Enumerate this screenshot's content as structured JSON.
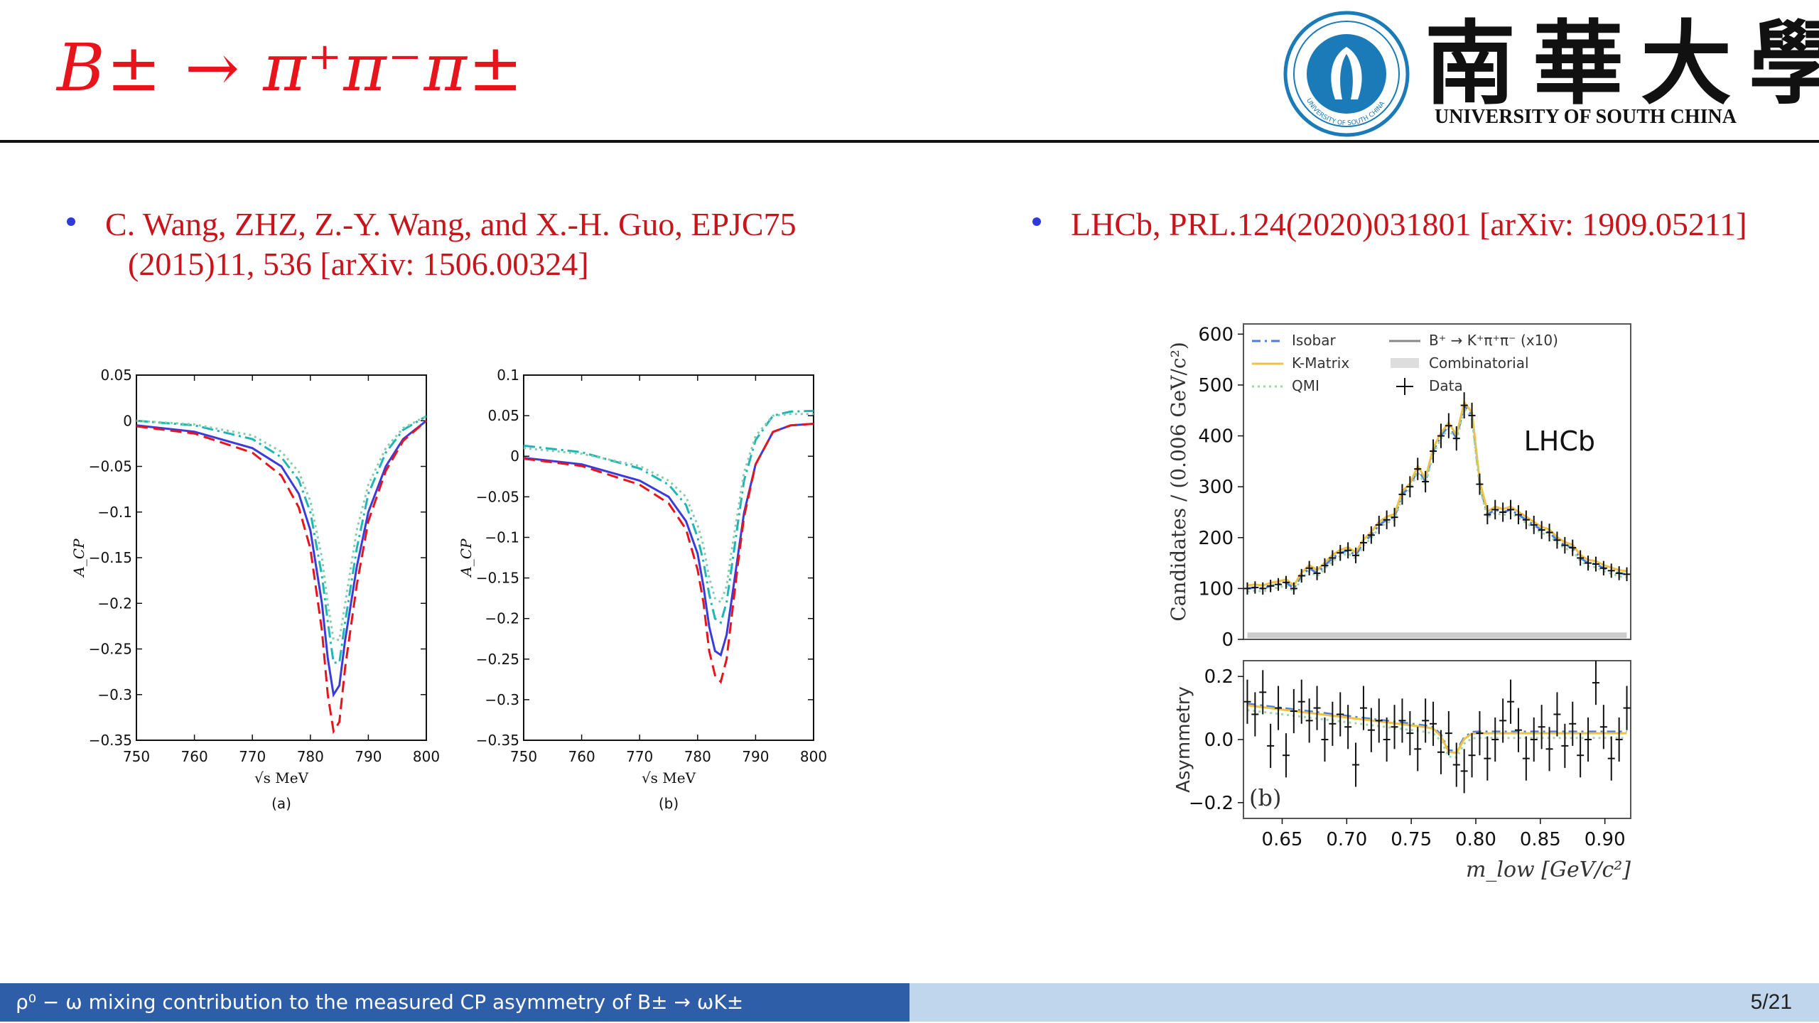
{
  "slide": {
    "title": "B± → π⁺π⁻π±",
    "logo": {
      "chinese_name": "南華大學",
      "english_name": "UNIVERSITY OF SOUTH CHINA",
      "seal_text": "UNIVERSITY OF SOUTH CHINA",
      "colors": {
        "seal": "#1a7bb8"
      }
    },
    "bullets": [
      {
        "line1": "C. Wang, ZHZ, Z.-Y. Wang, and X.-H. Guo, EPJC75",
        "line2": "(2015)11, 536 [arXiv: 1506.00324]"
      },
      {
        "line1": "LHCb, PRL.124(2020)031801 [arXiv: 1909.05211]"
      }
    ],
    "footer": {
      "text": "ρ⁰ − ω mixing contribution to the measured CP asymmetry of B± → ωK±",
      "page": "5/21"
    },
    "colors": {
      "title": "#e8141b",
      "bullet_text": "#c8141b",
      "bullet_dot": "#2e3bd6",
      "footer_left": "#2f5ea8",
      "footer_right": "#c0d6ec"
    }
  },
  "chart_data": [
    {
      "type": "line",
      "panel_label": "(a)",
      "xlabel": "√s MeV",
      "ylabel": "A_CP",
      "xlim": [
        750,
        800
      ],
      "ylim": [
        -0.35,
        0.05
      ],
      "xticks": [
        750,
        760,
        770,
        780,
        790,
        800
      ],
      "yticks": [
        0.05,
        0,
        -0.05,
        -0.1,
        -0.15,
        -0.2,
        -0.25,
        -0.3,
        -0.35
      ],
      "ytick_labels": [
        "0.05",
        "0",
        "−0.05",
        "−0.1",
        "−0.15",
        "−0.2",
        "−0.25",
        "−0.3",
        "−0.35"
      ],
      "grid": false,
      "series": [
        {
          "style": "solid",
          "color": "#3b3bdc",
          "x": [
            750,
            760,
            770,
            775,
            778,
            780,
            782,
            783,
            784,
            785,
            786,
            788,
            790,
            793,
            796,
            800
          ],
          "y": [
            -0.005,
            -0.012,
            -0.03,
            -0.05,
            -0.08,
            -0.12,
            -0.2,
            -0.26,
            -0.3,
            -0.29,
            -0.24,
            -0.16,
            -0.1,
            -0.05,
            -0.02,
            0.0
          ]
        },
        {
          "style": "dashed",
          "color": "#e8141b",
          "x": [
            750,
            760,
            770,
            775,
            778,
            780,
            782,
            783,
            784,
            785,
            786,
            788,
            790,
            793,
            796,
            800
          ],
          "y": [
            -0.006,
            -0.014,
            -0.035,
            -0.06,
            -0.095,
            -0.14,
            -0.23,
            -0.3,
            -0.34,
            -0.33,
            -0.27,
            -0.18,
            -0.11,
            -0.055,
            -0.022,
            0.0
          ]
        },
        {
          "style": "dashdot",
          "color": "#1fb5b5",
          "x": [
            750,
            760,
            770,
            775,
            778,
            780,
            782,
            783,
            784,
            785,
            786,
            788,
            790,
            793,
            796,
            800
          ],
          "y": [
            0.0,
            -0.005,
            -0.02,
            -0.04,
            -0.065,
            -0.1,
            -0.17,
            -0.22,
            -0.265,
            -0.265,
            -0.22,
            -0.14,
            -0.08,
            -0.035,
            -0.01,
            0.005
          ]
        },
        {
          "style": "dotted",
          "color": "#88ccaa",
          "x": [
            750,
            760,
            770,
            775,
            778,
            780,
            782,
            783,
            784,
            785,
            786,
            788,
            790,
            793,
            796,
            800
          ],
          "y": [
            0.0,
            -0.004,
            -0.016,
            -0.034,
            -0.056,
            -0.088,
            -0.15,
            -0.2,
            -0.24,
            -0.24,
            -0.2,
            -0.12,
            -0.07,
            -0.03,
            -0.008,
            0.005
          ]
        }
      ]
    },
    {
      "type": "line",
      "panel_label": "(b)",
      "xlabel": "√s MeV",
      "ylabel": "A_CP",
      "xlim": [
        750,
        800
      ],
      "ylim": [
        -0.35,
        0.1
      ],
      "xticks": [
        750,
        760,
        770,
        780,
        790,
        800
      ],
      "yticks": [
        0.1,
        0.05,
        0,
        -0.05,
        -0.1,
        -0.15,
        -0.2,
        -0.25,
        -0.3,
        -0.35
      ],
      "ytick_labels": [
        "0.1",
        "0.05",
        "0",
        "−0.05",
        "−0.1",
        "−0.15",
        "−0.2",
        "−0.25",
        "−0.3",
        "−0.35"
      ],
      "grid": false,
      "series": [
        {
          "style": "solid",
          "color": "#3b3bdc",
          "x": [
            750,
            760,
            770,
            775,
            778,
            780,
            781,
            782,
            783,
            784,
            785,
            786,
            787,
            788,
            790,
            793,
            796,
            800
          ],
          "y": [
            -0.002,
            -0.01,
            -0.03,
            -0.05,
            -0.08,
            -0.12,
            -0.16,
            -0.21,
            -0.24,
            -0.245,
            -0.22,
            -0.17,
            -0.12,
            -0.07,
            -0.01,
            0.03,
            0.038,
            0.04
          ]
        },
        {
          "style": "dashed",
          "color": "#e8141b",
          "x": [
            750,
            760,
            770,
            775,
            778,
            780,
            781,
            782,
            783,
            784,
            785,
            786,
            787,
            788,
            790,
            793,
            796,
            800
          ],
          "y": [
            -0.003,
            -0.012,
            -0.035,
            -0.058,
            -0.09,
            -0.14,
            -0.18,
            -0.24,
            -0.27,
            -0.278,
            -0.25,
            -0.19,
            -0.13,
            -0.075,
            -0.01,
            0.03,
            0.038,
            0.04
          ]
        },
        {
          "style": "dashdot",
          "color": "#1fb5b5",
          "x": [
            750,
            760,
            770,
            775,
            778,
            780,
            781,
            782,
            783,
            784,
            785,
            786,
            787,
            788,
            790,
            793,
            796,
            800
          ],
          "y": [
            0.013,
            0.005,
            -0.015,
            -0.035,
            -0.06,
            -0.1,
            -0.13,
            -0.17,
            -0.2,
            -0.205,
            -0.18,
            -0.13,
            -0.08,
            -0.03,
            0.02,
            0.05,
            0.055,
            0.056
          ]
        },
        {
          "style": "dotted",
          "color": "#88ccaa",
          "x": [
            750,
            760,
            770,
            775,
            778,
            780,
            781,
            782,
            783,
            784,
            785,
            786,
            787,
            788,
            790,
            793,
            796,
            800
          ],
          "y": [
            0.01,
            0.003,
            -0.012,
            -0.03,
            -0.05,
            -0.085,
            -0.11,
            -0.15,
            -0.175,
            -0.18,
            -0.16,
            -0.11,
            -0.065,
            -0.02,
            0.025,
            0.05,
            0.052,
            0.052
          ]
        }
      ]
    },
    {
      "type": "scatter",
      "panel": "top",
      "annotation": "LHCb",
      "ylabel": "Candidates / (0.006 GeV/c²)",
      "xlim": [
        0.62,
        0.92
      ],
      "ylim": [
        0,
        620
      ],
      "yticks": [
        0,
        100,
        200,
        300,
        400,
        500,
        600
      ],
      "grid": false,
      "legend": {
        "placement": "top-left",
        "entries": [
          "Isobar",
          "K-Matrix",
          "QMI",
          "B⁺ → K⁺π⁺π⁻ (x10)",
          "Combinatorial",
          "Data"
        ]
      },
      "data": {
        "x": [
          0.623,
          0.629,
          0.635,
          0.641,
          0.647,
          0.653,
          0.659,
          0.665,
          0.671,
          0.677,
          0.683,
          0.689,
          0.695,
          0.701,
          0.707,
          0.713,
          0.719,
          0.725,
          0.731,
          0.737,
          0.743,
          0.749,
          0.755,
          0.761,
          0.767,
          0.773,
          0.779,
          0.785,
          0.791,
          0.797,
          0.803,
          0.809,
          0.815,
          0.821,
          0.827,
          0.833,
          0.839,
          0.845,
          0.851,
          0.857,
          0.863,
          0.869,
          0.875,
          0.881,
          0.887,
          0.893,
          0.899,
          0.905,
          0.911,
          0.917
        ],
        "y": [
          100,
          102,
          100,
          105,
          108,
          112,
          100,
          125,
          140,
          130,
          145,
          160,
          170,
          175,
          165,
          190,
          205,
          225,
          235,
          240,
          285,
          300,
          335,
          310,
          370,
          400,
          420,
          395,
          460,
          440,
          305,
          245,
          255,
          250,
          255,
          245,
          235,
          225,
          215,
          210,
          195,
          185,
          180,
          160,
          150,
          148,
          140,
          135,
          130,
          128
        ]
      },
      "models": [
        "Isobar",
        "K-Matrix",
        "QMI"
      ]
    },
    {
      "type": "scatter",
      "panel": "bottom",
      "panel_label": "(b)",
      "ylabel": "Asymmetry",
      "xlabel": "m_low [GeV/c²]",
      "xlim": [
        0.62,
        0.92
      ],
      "ylim": [
        -0.25,
        0.25
      ],
      "xticks": [
        0.65,
        0.7,
        0.75,
        0.8,
        0.85,
        0.9
      ],
      "xtick_labels": [
        "0.65",
        "0.70",
        "0.75",
        "0.80",
        "0.85",
        "0.90"
      ],
      "yticks": [
        0.2,
        0.0,
        -0.2
      ],
      "ytick_labels": [
        "0.2",
        "0.0",
        "−0.2"
      ],
      "grid": false,
      "data": {
        "x": [
          0.623,
          0.629,
          0.635,
          0.641,
          0.647,
          0.653,
          0.659,
          0.665,
          0.671,
          0.677,
          0.683,
          0.689,
          0.695,
          0.701,
          0.707,
          0.713,
          0.719,
          0.725,
          0.731,
          0.737,
          0.743,
          0.749,
          0.755,
          0.761,
          0.767,
          0.773,
          0.779,
          0.785,
          0.791,
          0.797,
          0.803,
          0.809,
          0.815,
          0.821,
          0.827,
          0.833,
          0.839,
          0.845,
          0.851,
          0.857,
          0.863,
          0.869,
          0.875,
          0.881,
          0.887,
          0.893,
          0.899,
          0.905,
          0.911,
          0.917
        ],
        "y": [
          0.12,
          0.08,
          0.15,
          -0.02,
          0.1,
          -0.05,
          0.09,
          0.12,
          0.06,
          0.1,
          0.0,
          0.05,
          0.08,
          0.04,
          -0.08,
          0.1,
          0.03,
          0.06,
          0.0,
          0.04,
          0.06,
          0.02,
          -0.03,
          0.06,
          0.05,
          -0.04,
          0.02,
          -0.08,
          -0.1,
          -0.05,
          0.02,
          -0.06,
          0.0,
          0.06,
          0.12,
          0.03,
          -0.06,
          0.0,
          0.04,
          -0.03,
          0.08,
          -0.02,
          0.05,
          -0.05,
          0.0,
          0.18,
          0.04,
          -0.06,
          0.0,
          0.1
        ],
        "err": 0.07
      },
      "models": [
        "Isobar",
        "K-Matrix",
        "QMI"
      ]
    }
  ]
}
